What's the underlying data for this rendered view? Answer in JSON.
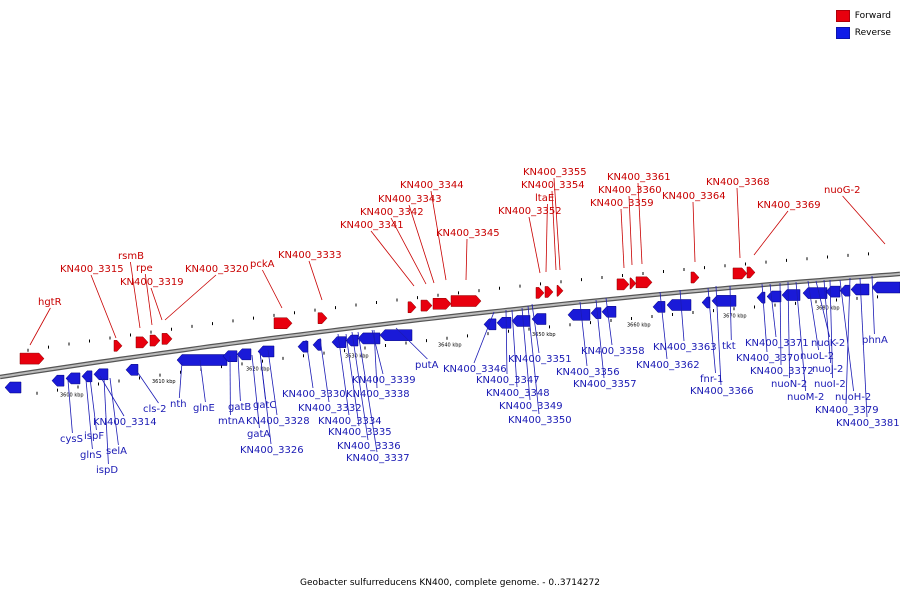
{
  "caption": "Geobacter sulfurreducens KN400, complete genome. - 0..3714272",
  "legend": [
    {
      "label": "Forward",
      "color": "#e8000e"
    },
    {
      "label": "Reverse",
      "color": "#0f1be8"
    }
  ],
  "colors": {
    "forward": "#e8000e",
    "reverse": "#1a1ad8",
    "forward_label": "#c80000",
    "reverse_label": "#1a1ab4",
    "backbone": "#999999"
  },
  "scale_unit": "kbp",
  "scale_labels": [
    {
      "kbp": 3600,
      "label": "3600 kbp"
    },
    {
      "kbp": 3610,
      "label": "3610 kbp"
    },
    {
      "kbp": 3620,
      "label": "3620 kbp"
    },
    {
      "kbp": 3630,
      "label": "3630 kbp"
    },
    {
      "kbp": 3640,
      "label": "3640 kbp"
    },
    {
      "kbp": 3650,
      "label": "3650 kbp"
    },
    {
      "kbp": 3660,
      "label": "3660 kbp"
    },
    {
      "kbp": 3670,
      "label": "3670 kbp"
    },
    {
      "kbp": 3680,
      "label": "3680 kbp"
    }
  ],
  "forward_labels": [
    "hgtR",
    "KN400_3315",
    "rsmB",
    "rpe",
    "KN400_3319",
    "KN400_3320",
    "pckA",
    "KN400_3333",
    "KN400_3341",
    "KN400_3342",
    "KN400_3343",
    "KN400_3344",
    "KN400_3345",
    "KN400_3352",
    "ltaE",
    "KN400_3354",
    "KN400_3355",
    "KN400_3359",
    "KN400_3360",
    "KN400_3361",
    "KN400_3364",
    "KN400_3368",
    "KN400_3369",
    "nuoG-2"
  ],
  "reverse_labels": [
    "cysS",
    "glnS",
    "ispF",
    "ispD",
    "selA",
    "KN400_3314",
    "cls-2",
    "nth",
    "glnE",
    "mtnA",
    "gatB",
    "gatA",
    "gatC",
    "KN400_3326",
    "KN400_3328",
    "KN400_3330",
    "KN400_3332",
    "KN400_3334",
    "KN400_3335",
    "KN400_3336",
    "KN400_3337",
    "KN400_3338",
    "KN400_3339",
    "putA",
    "KN400_3346",
    "KN400_3347",
    "KN400_3348",
    "KN400_3349",
    "KN400_3350",
    "KN400_3351",
    "KN400_3356",
    "KN400_3357",
    "KN400_3358",
    "KN400_3362",
    "KN400_3363",
    "fnr-1",
    "KN400_3366",
    "tkt",
    "KN400_3370",
    "KN400_3371",
    "KN400_3372",
    "nuoN-2",
    "nuoM-2",
    "nuoL-2",
    "nuoK-2",
    "nuoJ-2",
    "nuoI-2",
    "nuoH-2",
    "KN400_3379",
    "KN400_3381",
    "phnA"
  ]
}
